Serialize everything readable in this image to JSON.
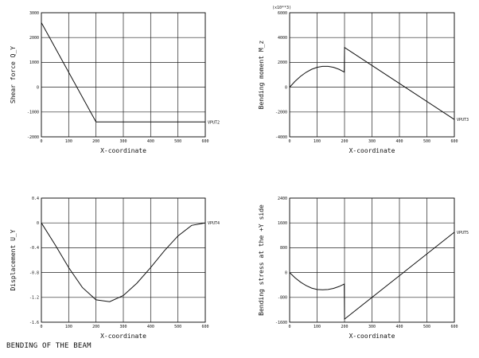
{
  "footer": {
    "title": "BENDING OF THE BEAM"
  },
  "chart_data": [
    {
      "type": "line",
      "ylabel": "Shear force Q_Y",
      "xlabel": "X-coordinate",
      "xlim": [
        0,
        600
      ],
      "ylim": [
        -2000,
        3000
      ],
      "xticks": [
        0,
        100,
        200,
        300,
        400,
        500,
        600
      ],
      "yticks": [
        -2000,
        -1000,
        0,
        1000,
        2000,
        3000
      ],
      "series": [
        {
          "name": "VPUT2",
          "x": [
            0,
            200,
            600
          ],
          "y": [
            2600,
            -1400,
            -1400
          ]
        }
      ]
    },
    {
      "type": "line",
      "ylabel": "Bending moment M_z",
      "xlabel": "X-coordinate",
      "xlim": [
        0,
        600
      ],
      "ylim": [
        -4000,
        6000
      ],
      "xticks": [
        0,
        100,
        200,
        300,
        400,
        500,
        600
      ],
      "yticks": [
        -4000,
        -2000,
        0,
        2000,
        4000,
        6000
      ],
      "unit_text": "(x10**3)",
      "series": [
        {
          "name": "VPUT3",
          "x": [
            0,
            20,
            40,
            60,
            80,
            100,
            120,
            140,
            160,
            180,
            199,
            200,
            600
          ],
          "y": [
            0,
            480,
            880,
            1200,
            1440,
            1600,
            1680,
            1680,
            1600,
            1440,
            1220,
            3200,
            -2600
          ]
        }
      ]
    },
    {
      "type": "line",
      "ylabel": "Displacement U_Y",
      "xlabel": "X-coordinate",
      "xlim": [
        0,
        600
      ],
      "ylim": [
        -1.6,
        0.4
      ],
      "xticks": [
        0,
        100,
        200,
        300,
        400,
        500,
        600
      ],
      "yticks": [
        -1.6,
        -1.2,
        -0.8,
        -0.4,
        0,
        0.4
      ],
      "series": [
        {
          "name": "VPUT4",
          "x": [
            0,
            50,
            100,
            150,
            200,
            250,
            300,
            350,
            400,
            450,
            500,
            550,
            600
          ],
          "y": [
            0,
            -0.35,
            -0.72,
            -1.04,
            -1.24,
            -1.27,
            -1.17,
            -0.97,
            -0.72,
            -0.45,
            -0.21,
            -0.04,
            0
          ]
        }
      ]
    },
    {
      "type": "line",
      "ylabel": "Bending stress at the +Y side",
      "xlabel": "X-coordinate",
      "xlim": [
        0,
        600
      ],
      "ylim": [
        -1600,
        2400
      ],
      "xticks": [
        0,
        100,
        200,
        300,
        400,
        500,
        600
      ],
      "yticks": [
        -1600,
        -800,
        0,
        800,
        1600,
        2400
      ],
      "series": [
        {
          "name": "VPUT5",
          "x": [
            0,
            20,
            40,
            60,
            80,
            100,
            120,
            140,
            160,
            180,
            199,
            200,
            600
          ],
          "y": [
            0,
            -170,
            -310,
            -420,
            -500,
            -545,
            -555,
            -545,
            -510,
            -450,
            -370,
            -1500,
            1300
          ]
        }
      ]
    }
  ]
}
